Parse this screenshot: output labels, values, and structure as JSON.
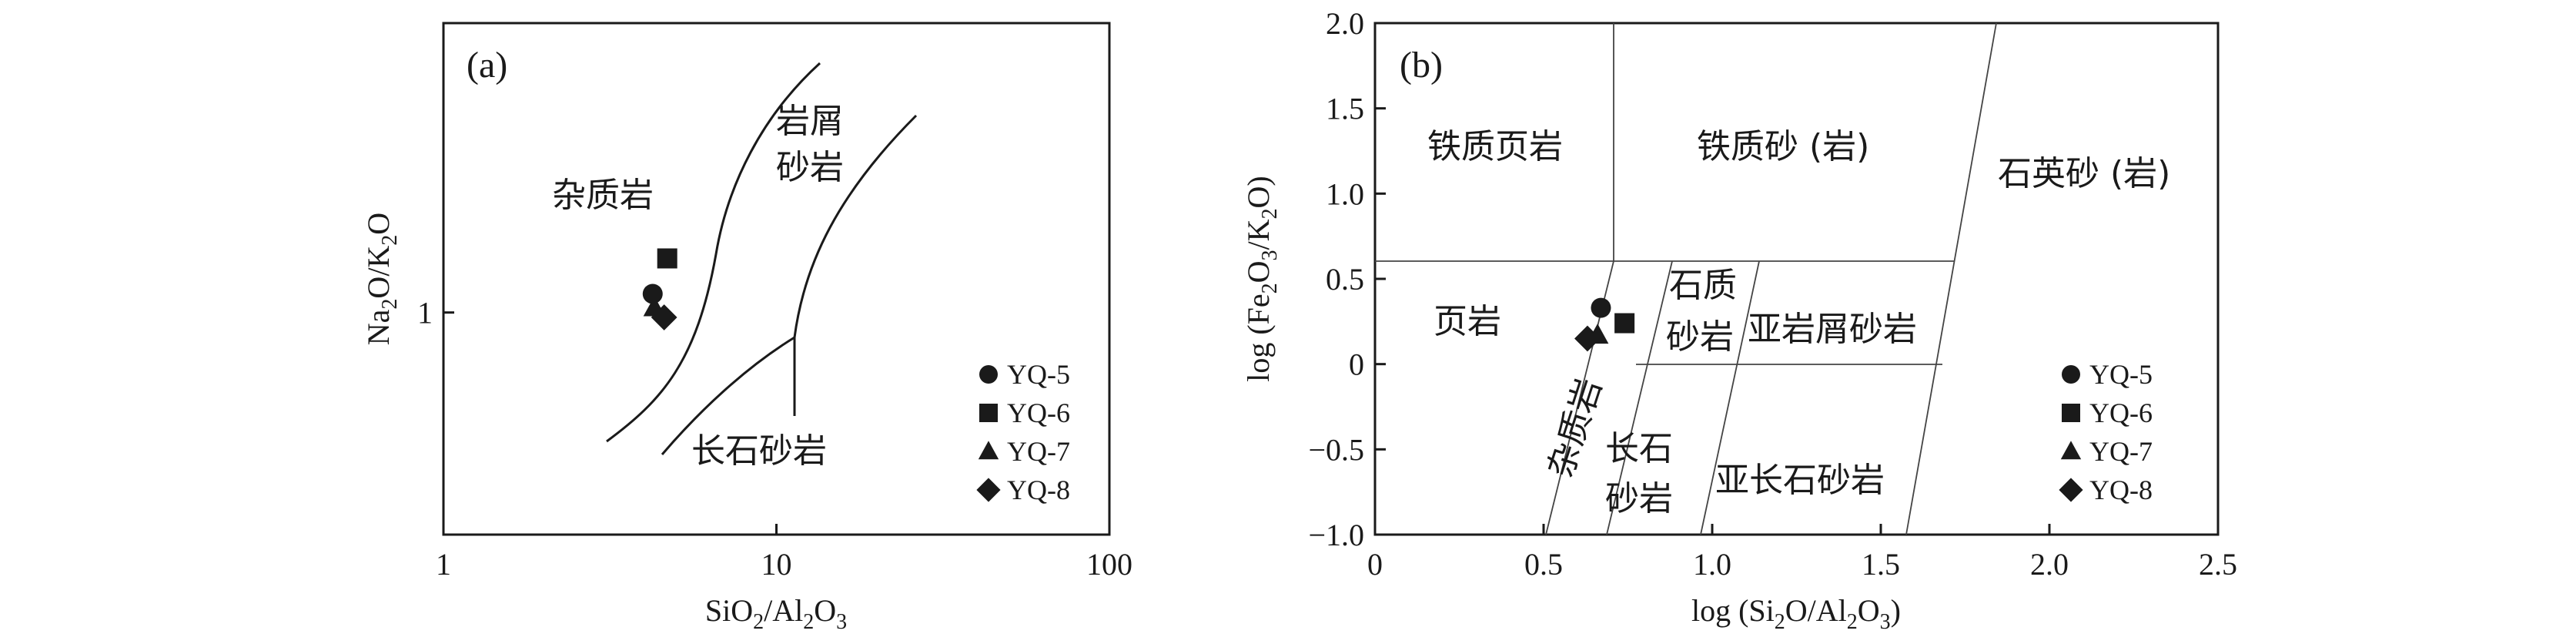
{
  "colors": {
    "ink": "#1a1a1a",
    "background": "#ffffff"
  },
  "chart_data": [
    {
      "type": "scatter",
      "panel_label": "(a)",
      "xlabel": "SiO2/Al2O3",
      "ylabel": "Na2O/K2O",
      "x_scale": "log",
      "y_scale": "log",
      "xlim": [
        1,
        100
      ],
      "ylim": [
        0.4,
        3.3
      ],
      "x_ticks": [
        "1",
        "10",
        "100"
      ],
      "y_ticks": [
        "1"
      ],
      "grid": false,
      "legend_placement": "bottom-right",
      "regions": [
        "杂质岩",
        "岩屑",
        "砂岩",
        "长石砂岩"
      ],
      "series": [
        {
          "name": "YQ-5",
          "marker": "circle",
          "x": [
            4.25
          ],
          "y": [
            1.08
          ]
        },
        {
          "name": "YQ-6",
          "marker": "square",
          "x": [
            4.7
          ],
          "y": [
            1.25
          ]
        },
        {
          "name": "YQ-7",
          "marker": "triangle",
          "x": [
            4.3
          ],
          "y": [
            1.02
          ]
        },
        {
          "name": "YQ-8",
          "marker": "diamond",
          "x": [
            4.6
          ],
          "y": [
            0.98
          ]
        }
      ]
    },
    {
      "type": "scatter",
      "panel_label": "(b)",
      "xlabel": "log (Si2O/Al2O3)",
      "ylabel": "log (Fe2O3/K2O)",
      "xlim": [
        0,
        2.5
      ],
      "ylim": [
        -1.0,
        2.0
      ],
      "x_ticks": [
        "0",
        "0.5",
        "1.0",
        "1.5",
        "2.0",
        "2.5"
      ],
      "y_ticks": [
        "−1.0",
        "−0.5",
        "0",
        "0.5",
        "1.0",
        "1.5",
        "2.0"
      ],
      "grid": false,
      "legend_placement": "bottom-right",
      "regions": [
        "铁质页岩",
        "铁质砂 (岩)",
        "石英砂 (岩)",
        "页岩",
        "石质",
        "砂岩",
        "亚岩屑砂岩",
        "杂质岩",
        "长石",
        "砂岩",
        "亚长石砂岩"
      ],
      "series": [
        {
          "name": "YQ-5",
          "marker": "circle",
          "x": [
            0.67
          ],
          "y": [
            0.33
          ]
        },
        {
          "name": "YQ-6",
          "marker": "square",
          "x": [
            0.74
          ],
          "y": [
            0.24
          ]
        },
        {
          "name": "YQ-7",
          "marker": "triangle",
          "x": [
            0.66
          ],
          "y": [
            0.17
          ]
        },
        {
          "name": "YQ-8",
          "marker": "diamond",
          "x": [
            0.63
          ],
          "y": [
            0.15
          ]
        }
      ]
    }
  ]
}
